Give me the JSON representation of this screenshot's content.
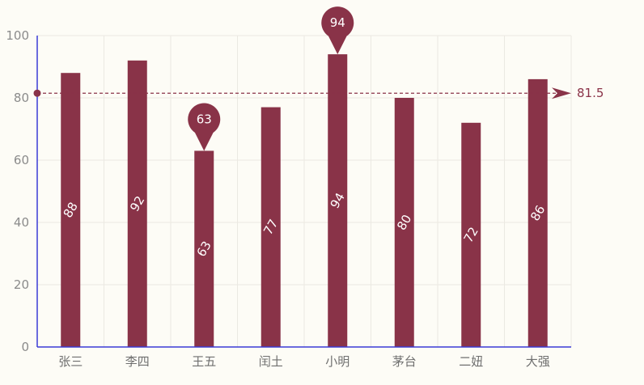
{
  "chart_data": {
    "type": "bar",
    "categories": [
      "张三",
      "李四",
      "王五",
      "闰土",
      "小明",
      "茅台",
      "二妞",
      "大强"
    ],
    "values": [
      88,
      92,
      63,
      77,
      94,
      80,
      72,
      86
    ],
    "ylim": [
      0,
      100
    ],
    "yticks": [
      "0",
      "20",
      "40",
      "60",
      "80",
      "100"
    ],
    "grid": true,
    "bar_color": "#893348",
    "axis_color": "#3b3bd6",
    "grid_color": "#ebe9e2",
    "bar_labels": [
      "88",
      "92",
      "63",
      "77",
      "94",
      "80",
      "72",
      "86"
    ],
    "mark_points": [
      {
        "category": "王五",
        "value": 63,
        "label": "63"
      },
      {
        "category": "小明",
        "value": 94,
        "label": "94"
      }
    ],
    "mark_line": {
      "value": 81.5,
      "label": "81.5"
    }
  }
}
